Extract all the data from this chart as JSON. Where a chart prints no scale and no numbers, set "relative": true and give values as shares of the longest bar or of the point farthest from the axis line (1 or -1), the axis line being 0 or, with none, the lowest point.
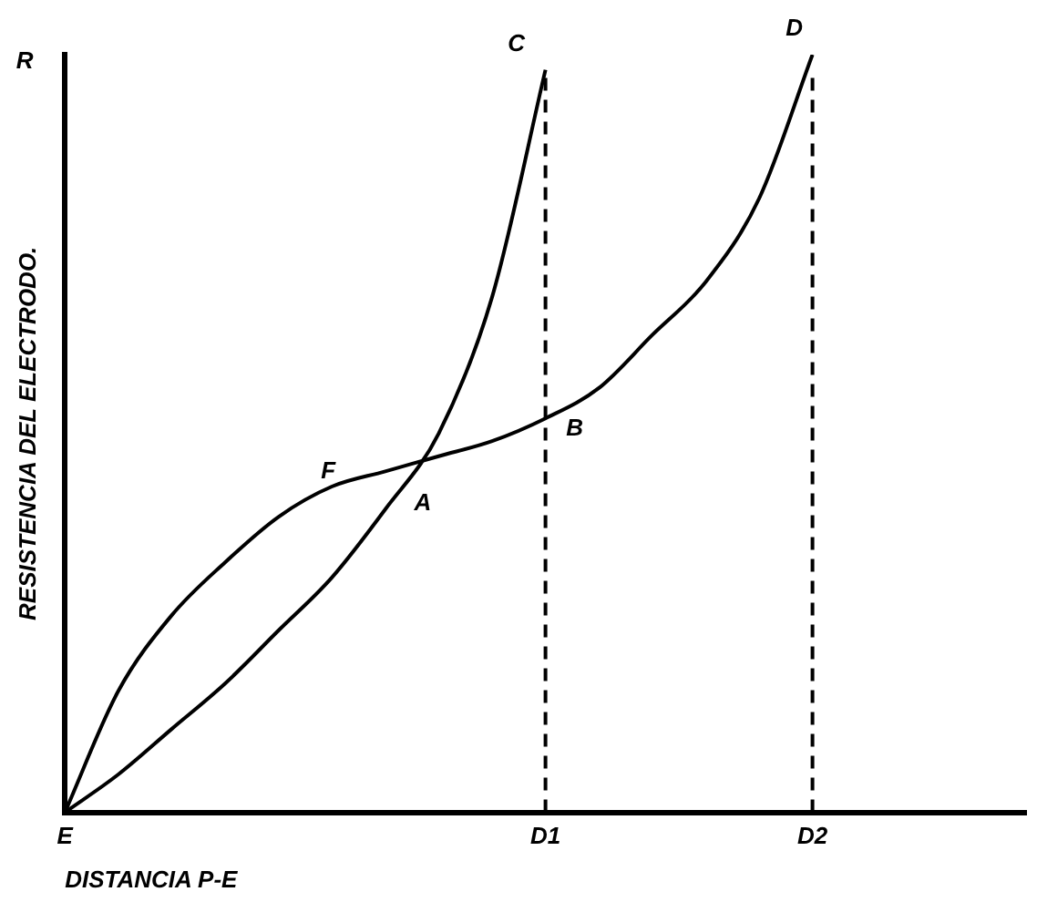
{
  "chart_data": {
    "type": "line",
    "relative": true,
    "xlabel": "DISTANCIA P-E",
    "ylabel": "RESISTENCIA DEL ELECTRODO.",
    "categories": [
      "E",
      null,
      null,
      null,
      null,
      null,
      null,
      null,
      null,
      "D1",
      null,
      null,
      null,
      null,
      "D2",
      null,
      null,
      null,
      null
    ],
    "series": [
      {
        "color": "#000000",
        "values": [
          0,
          0.05,
          0.11,
          0.17,
          0.24,
          0.31,
          0.4,
          0.5,
          0.68,
          0.98,
          null,
          null,
          null,
          null,
          null,
          null,
          null,
          null,
          null
        ]
      },
      {
        "color": "#000000",
        "values": [
          0,
          0.16,
          0.26,
          0.33,
          0.39,
          0.43,
          0.45,
          0.47,
          0.49,
          0.52,
          0.56,
          0.63,
          0.7,
          0.81,
          1,
          null,
          null,
          null,
          null
        ]
      }
    ],
    "ref_lines": [
      {
        "axis": "x",
        "value": "D1",
        "line_style": "dashed",
        "color": "#000000"
      },
      {
        "axis": "x",
        "value": "D2",
        "line_style": "dashed",
        "color": "#000000"
      }
    ],
    "annotations": [
      "R",
      "C",
      "D",
      "F",
      "A",
      "B"
    ],
    "marker": "none",
    "line_style": "solid",
    "grid": false,
    "legend": false
  }
}
